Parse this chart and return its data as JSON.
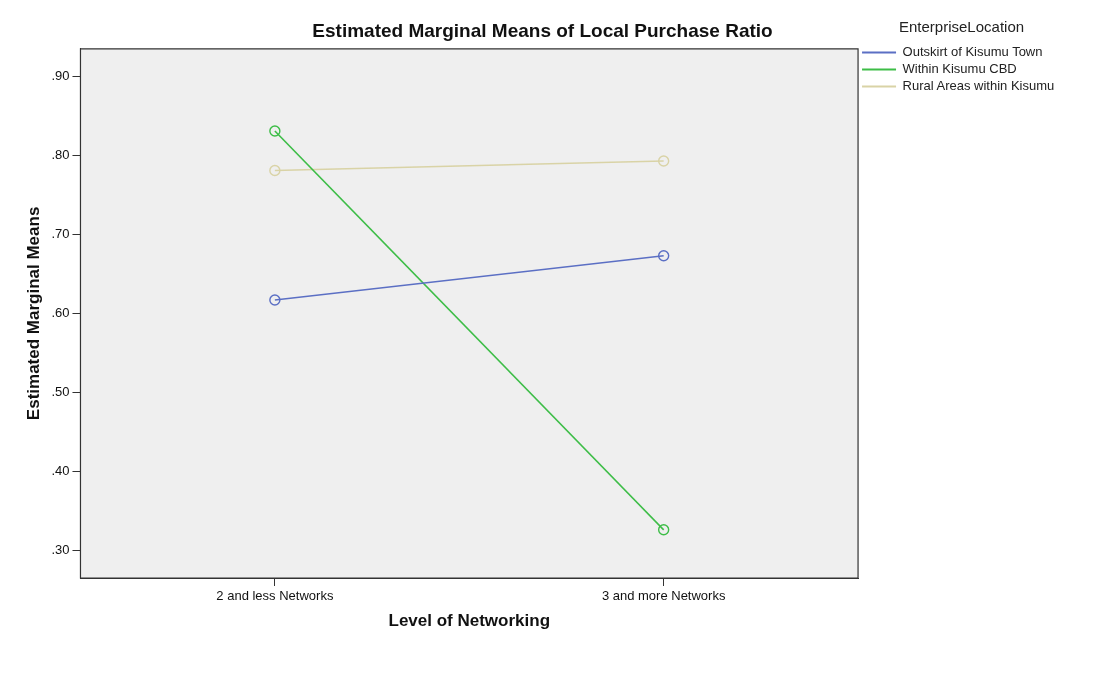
{
  "chart_data": {
    "type": "line",
    "title": "Estimated Marginal Means of Local Purchase Ratio",
    "xlabel": "Level of Networking",
    "ylabel": "Estimated Marginal Means",
    "legend_title": "EnterpriseLocation",
    "categories": [
      "2 and less Networks",
      "3 and more Networks"
    ],
    "series": [
      {
        "name": "Outskirt of Kisumu Town",
        "color": "#5b6fc4",
        "values": [
          0.617,
          0.673
        ]
      },
      {
        "name": "Within Kisumu CBD",
        "color": "#3dbd47",
        "values": [
          0.831,
          0.326
        ]
      },
      {
        "name": "Rural Areas within Kisumu",
        "color": "#d9d3a6",
        "values": [
          0.781,
          0.793
        ]
      }
    ],
    "ylim": [
      0.265,
      0.935
    ],
    "yticks": [
      {
        "value": 0.3,
        "label": ".30"
      },
      {
        "value": 0.4,
        "label": ".40"
      },
      {
        "value": 0.5,
        "label": ".50"
      },
      {
        "value": 0.6,
        "label": ".60"
      },
      {
        "value": 0.7,
        "label": ".70"
      },
      {
        "value": 0.8,
        "label": ".80"
      },
      {
        "value": 0.9,
        "label": ".90"
      }
    ],
    "grid": false,
    "legend": "top right",
    "marker": "circle",
    "line_style": "solid"
  }
}
